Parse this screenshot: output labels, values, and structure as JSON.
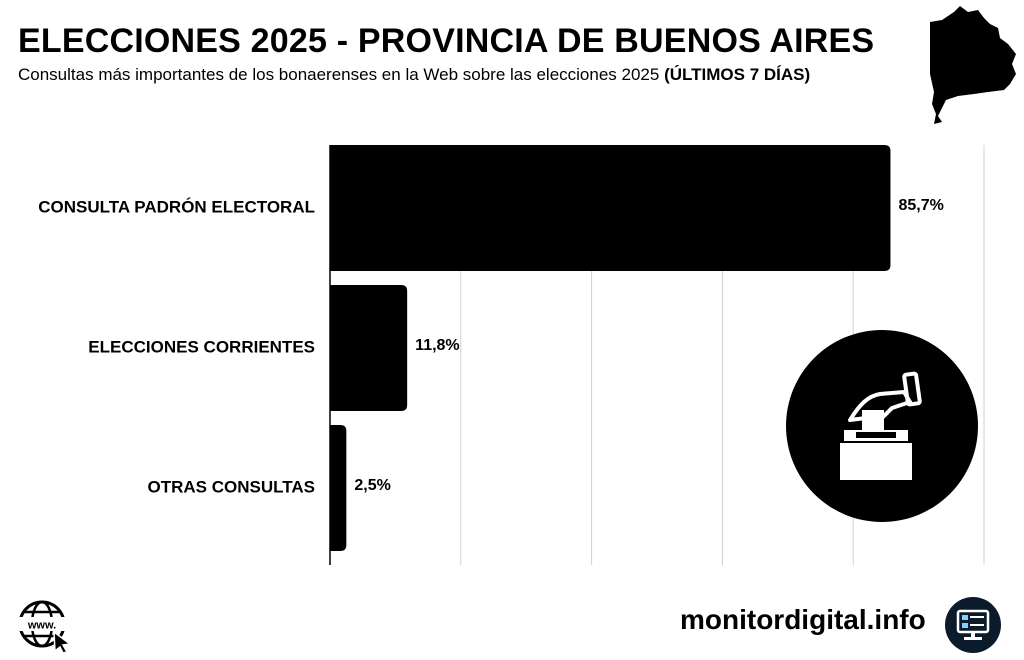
{
  "header": {
    "title": "ELECCIONES 2025 - PROVINCIA DE BUENOS AIRES",
    "subtitle": "Consultas más importantes de los bonaerenses en la Web sobre las elecciones 2025",
    "subtitle_emphasis": "(ÚLTIMOS 7 DÍAS)"
  },
  "chart_data": {
    "type": "bar",
    "orientation": "horizontal",
    "title": "ELECCIONES 2025 - PROVINCIA DE BUENOS AIRES",
    "categories": [
      "CONSULTA PADRÓN ELECTORAL",
      "ELECCIONES CORRIENTES",
      "OTRAS CONSULTAS"
    ],
    "values": [
      85.7,
      11.8,
      2.5
    ],
    "value_labels": [
      "85,7%",
      "11,8%",
      "2,5%"
    ],
    "xlim": [
      0,
      100
    ],
    "gridlines": [
      0,
      20,
      40,
      60,
      80,
      100
    ],
    "grid": true,
    "legend": "none",
    "bar_color": "#000000",
    "grid_color": "#d0d0d0"
  },
  "footer": {
    "brand": "monitordigital.info",
    "globe_label": "www."
  }
}
